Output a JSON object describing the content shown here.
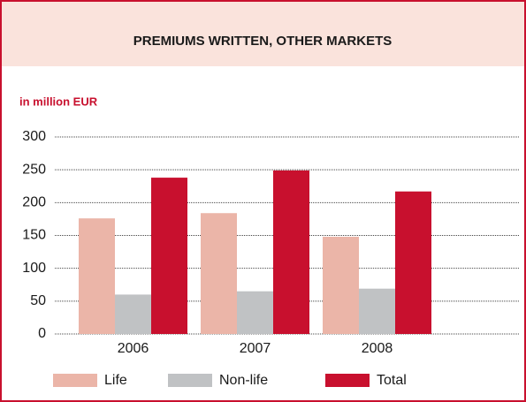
{
  "chart_data": {
    "type": "bar",
    "title": "PREMIUMS WRITTEN, OTHER MARKETS",
    "subtitle": "in million EUR",
    "categories": [
      "2006",
      "2007",
      "2008"
    ],
    "series": [
      {
        "name": "Life",
        "color": "#ebb5a8",
        "values": [
          176,
          184,
          148
        ]
      },
      {
        "name": "Non-life",
        "color": "#c0c2c4",
        "values": [
          60,
          65,
          69
        ]
      },
      {
        "name": "Total",
        "color": "#c8102e",
        "values": [
          238,
          249,
          217
        ]
      }
    ],
    "ylim": [
      0,
      300
    ],
    "yticks": [
      0,
      50,
      100,
      150,
      200,
      250,
      300
    ],
    "grid": true,
    "legend": "bottom"
  }
}
